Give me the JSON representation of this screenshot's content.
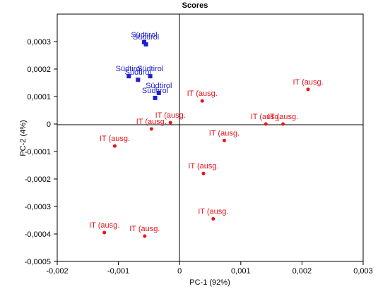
{
  "chart_data": {
    "type": "scatter",
    "title": "Scores",
    "xlabel": "PC-1 (92%)",
    "ylabel": "PC-2 (4%)",
    "xlim": [
      -0.002,
      0.003
    ],
    "ylim": [
      -0.0005,
      0.0004
    ],
    "xticks": [
      -0.002,
      -0.001,
      0,
      0.001,
      0.002,
      0.003
    ],
    "xtick_labels": [
      "-0,002",
      "-0,001",
      "0",
      "0,001",
      "0,002",
      "0,003"
    ],
    "yticks": [
      -0.0005,
      -0.0004,
      -0.0003,
      -0.0002,
      -0.0001,
      0,
      0.0001,
      0.0002,
      0.0003
    ],
    "ytick_labels": [
      "-0,0005",
      "-0,0004",
      "-0,0003",
      "-0,0002",
      "-0,0001",
      "0",
      "0,0001",
      "0,0002",
      "0,0003"
    ],
    "grid": false,
    "series": [
      {
        "name": "Südtirol",
        "color": "#1f1fd2",
        "marker": "square",
        "points": [
          {
            "x": -0.00058,
            "y": 0.000298,
            "label": "Südtirol"
          },
          {
            "x": -0.00055,
            "y": 0.00029,
            "label": "Südtirol"
          },
          {
            "x": -0.00083,
            "y": 0.000174,
            "label": "Südtirol"
          },
          {
            "x": -0.00048,
            "y": 0.000174,
            "label": "Südtirol"
          },
          {
            "x": -0.00068,
            "y": 0.000161,
            "label": "Südtirol"
          },
          {
            "x": -0.00034,
            "y": 0.000113,
            "label": "Südtirol"
          },
          {
            "x": -0.0004,
            "y": 9.5e-05,
            "label": "Südtirol"
          }
        ]
      },
      {
        "name": "IT (ausg.",
        "color": "#e8131b",
        "marker": "circle",
        "points": [
          {
            "x": 0.0021,
            "y": 0.000126,
            "label": "IT (ausg."
          },
          {
            "x": 0.00037,
            "y": 8.4e-05,
            "label": "IT (ausg."
          },
          {
            "x": -0.00015,
            "y": 5e-06,
            "label": "IT (ausg."
          },
          {
            "x": -0.00046,
            "y": -1.8e-05,
            "label": "IT (ausg."
          },
          {
            "x": 0.00141,
            "y": 0.0,
            "label": "IT (ausg."
          },
          {
            "x": 0.00169,
            "y": 0.0,
            "label": "IT (ausg."
          },
          {
            "x": 0.00073,
            "y": -6e-05,
            "label": "IT (ausg."
          },
          {
            "x": -0.00106,
            "y": -8e-05,
            "label": "IT (ausg."
          },
          {
            "x": 0.00039,
            "y": -0.00018,
            "label": "IT (ausg."
          },
          {
            "x": 0.00055,
            "y": -0.000345,
            "label": "IT (ausg."
          },
          {
            "x": -0.00123,
            "y": -0.000395,
            "label": "IT (ausg."
          },
          {
            "x": -0.00057,
            "y": -0.000408,
            "label": "IT (ausg."
          }
        ]
      }
    ]
  }
}
